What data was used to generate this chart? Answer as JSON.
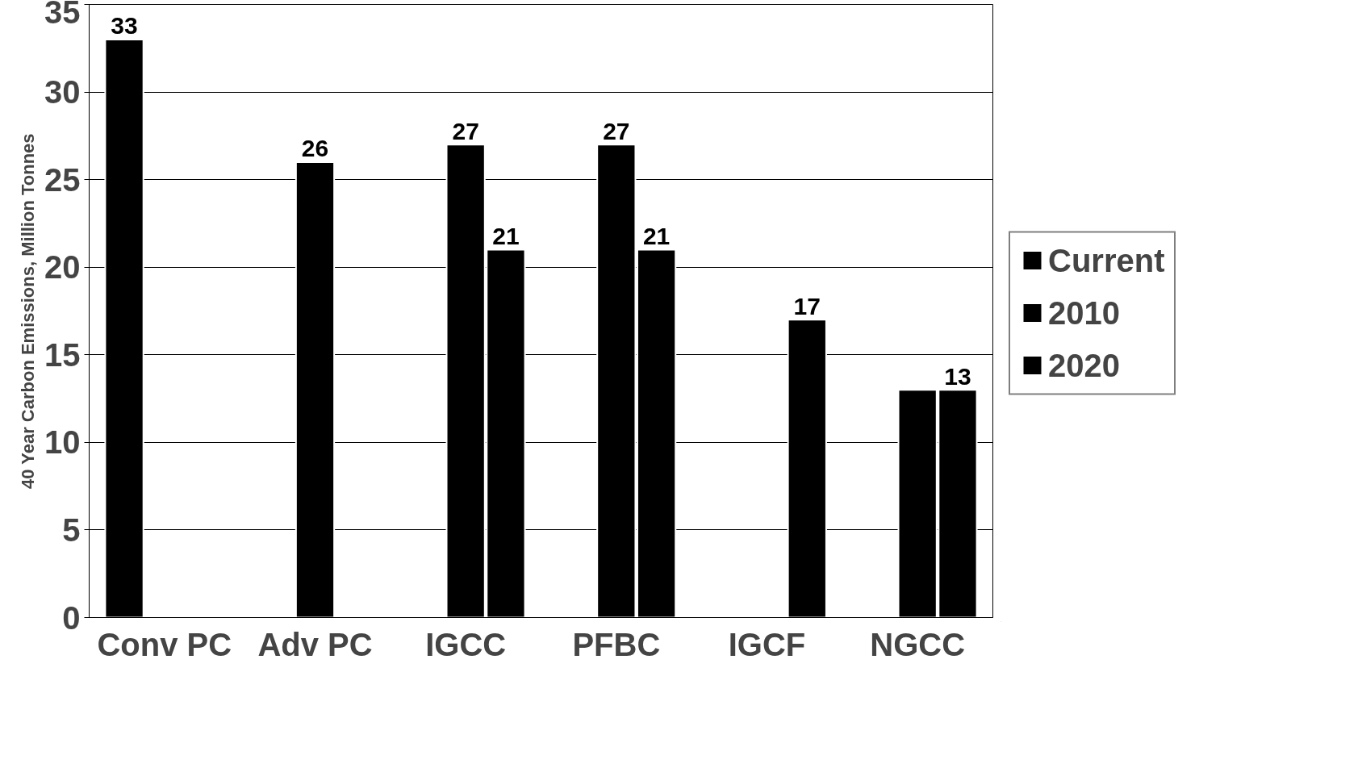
{
  "chart_data": {
    "type": "bar",
    "ylabel": "40 Year Carbon Emissions, Million Tonnes",
    "categories": [
      "Conv PC",
      "Adv PC",
      "IGCC",
      "PFBC",
      "IGCF",
      "NGCC"
    ],
    "series": [
      {
        "name": "Current",
        "color": "#000000",
        "values": [
          33,
          null,
          null,
          null,
          null,
          null
        ],
        "value_labels": [
          "33",
          null,
          null,
          null,
          null,
          null
        ]
      },
      {
        "name": "2010",
        "color": "#000000",
        "values": [
          null,
          26,
          27,
          27,
          null,
          13
        ],
        "value_labels": [
          null,
          "26",
          "27",
          "27",
          null,
          null
        ]
      },
      {
        "name": "2020",
        "color": "#000000",
        "values": [
          null,
          null,
          21,
          21,
          17,
          13
        ],
        "value_labels": [
          null,
          null,
          "21",
          "21",
          "17",
          "13"
        ]
      }
    ],
    "ylim": [
      0,
      35
    ],
    "yticks": [
      0,
      5,
      10,
      15,
      20,
      25,
      30,
      35
    ],
    "grid": "y",
    "legend": "right"
  }
}
